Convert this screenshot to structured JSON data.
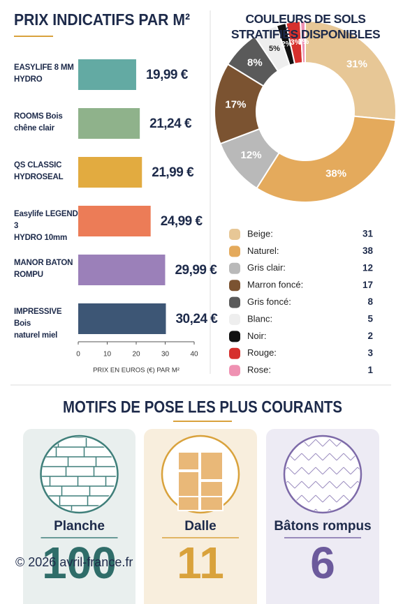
{
  "chart_data": [
    {
      "type": "hbar",
      "title": "PRIX INDICATIFS PAR M²",
      "categories": [
        "EASYLIFE 8 MM\nHYDRO",
        "ROOMS Bois\nchêne clair",
        "QS CLASSIC\nHYDROSEAL",
        "Easylife LEGEND 3\nHYDRO 10mm",
        "MANOR BATON\nROMPU",
        "IMPRESSIVE Bois\nnaturel miel"
      ],
      "values": [
        19.99,
        21.24,
        21.99,
        24.99,
        29.99,
        30.24
      ],
      "value_labels": [
        "19,99 €",
        "21,24 €",
        "21,99 €",
        "24,99 €",
        "29,99 €",
        "30,24 €"
      ],
      "colors": [
        "#63aaa3",
        "#8fb28b",
        "#e2ab40",
        "#ec7c57",
        "#9b80b9",
        "#3d5675"
      ],
      "xlim": [
        0,
        40
      ],
      "xticks": [
        0,
        10,
        20,
        30,
        40
      ],
      "xlabel": "PRIX EN EUROS (€) PAR M²"
    },
    {
      "type": "donut",
      "title": "COULEURS DE SOLS\nSTRATIFIÉS DISPONIBLES",
      "categories": [
        "Beige:",
        "Naturel:",
        "Gris clair:",
        "Marron foncé:",
        "Gris foncé:",
        "Blanc:",
        "Noir:",
        "Rouge:",
        "Rose:"
      ],
      "values": [
        31,
        38,
        12,
        17,
        8,
        5,
        2,
        3,
        1
      ],
      "value_labels": [
        "31%",
        "38%",
        "12%",
        "17%",
        "8%",
        "5%",
        "2%",
        "3%",
        "1%"
      ],
      "colors": [
        "#e7c796",
        "#e4aa5c",
        "#b9b9b9",
        "#7b5331",
        "#5a5a5a",
        "#eeeeee",
        "#111111",
        "#d6302d",
        "#ef91b2"
      ]
    }
  ],
  "motifs": {
    "title": "MOTIFS DE POSE LES PLUS COURANTS",
    "items": [
      {
        "name": "Planche",
        "value": "100"
      },
      {
        "name": "Dalle",
        "value": "11"
      },
      {
        "name": "Bâtons rompus",
        "value": "6"
      }
    ]
  },
  "footer": "© 2026 avril-france.fr"
}
